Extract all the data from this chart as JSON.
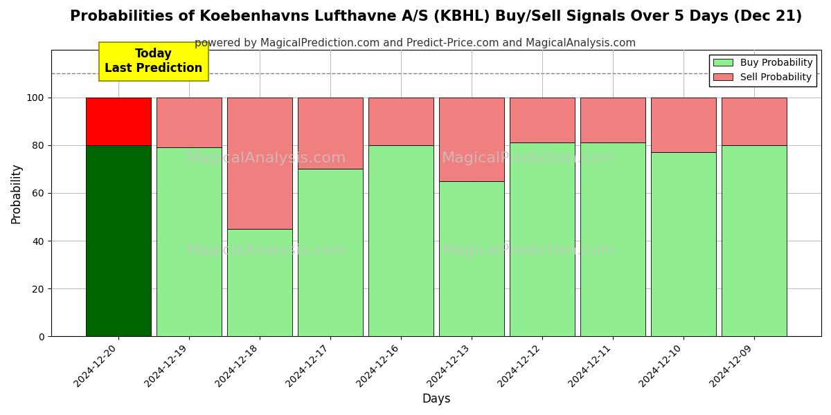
{
  "title": "Probabilities of Koebenhavns Lufthavne A/S (KBHL) Buy/Sell Signals Over 5 Days (Dec 21)",
  "subtitle": "powered by MagicalPrediction.com and Predict-Price.com and MagicalAnalysis.com",
  "xlabel": "Days",
  "ylabel": "Probability",
  "dates": [
    "2024-12-20",
    "2024-12-19",
    "2024-12-18",
    "2024-12-17",
    "2024-12-16",
    "2024-12-13",
    "2024-12-12",
    "2024-12-11",
    "2024-12-10",
    "2024-12-09"
  ],
  "buy_probs": [
    80,
    79,
    45,
    70,
    80,
    65,
    81,
    81,
    77,
    80
  ],
  "sell_probs": [
    20,
    21,
    55,
    30,
    20,
    35,
    19,
    19,
    23,
    20
  ],
  "today_buy_color": "#006400",
  "today_sell_color": "#FF0000",
  "buy_color": "#90EE90",
  "sell_color": "#F08080",
  "today_annotation_bg": "#FFFF00",
  "today_annotation_text": "Today\nLast Prediction",
  "ylim": [
    0,
    120
  ],
  "yticks": [
    0,
    20,
    40,
    60,
    80,
    100
  ],
  "dashed_line_y": 110,
  "watermark_texts": [
    "MagicalAnalysis.com",
    "MagicalPrediction.com"
  ],
  "background_color": "#ffffff",
  "grid_color": "#bbbbbb",
  "title_fontsize": 15,
  "subtitle_fontsize": 11,
  "label_fontsize": 12,
  "tick_fontsize": 10,
  "bar_width": 0.92,
  "legend_label_buy": "Buy Probability",
  "legend_label_sell": "Sell Probability"
}
